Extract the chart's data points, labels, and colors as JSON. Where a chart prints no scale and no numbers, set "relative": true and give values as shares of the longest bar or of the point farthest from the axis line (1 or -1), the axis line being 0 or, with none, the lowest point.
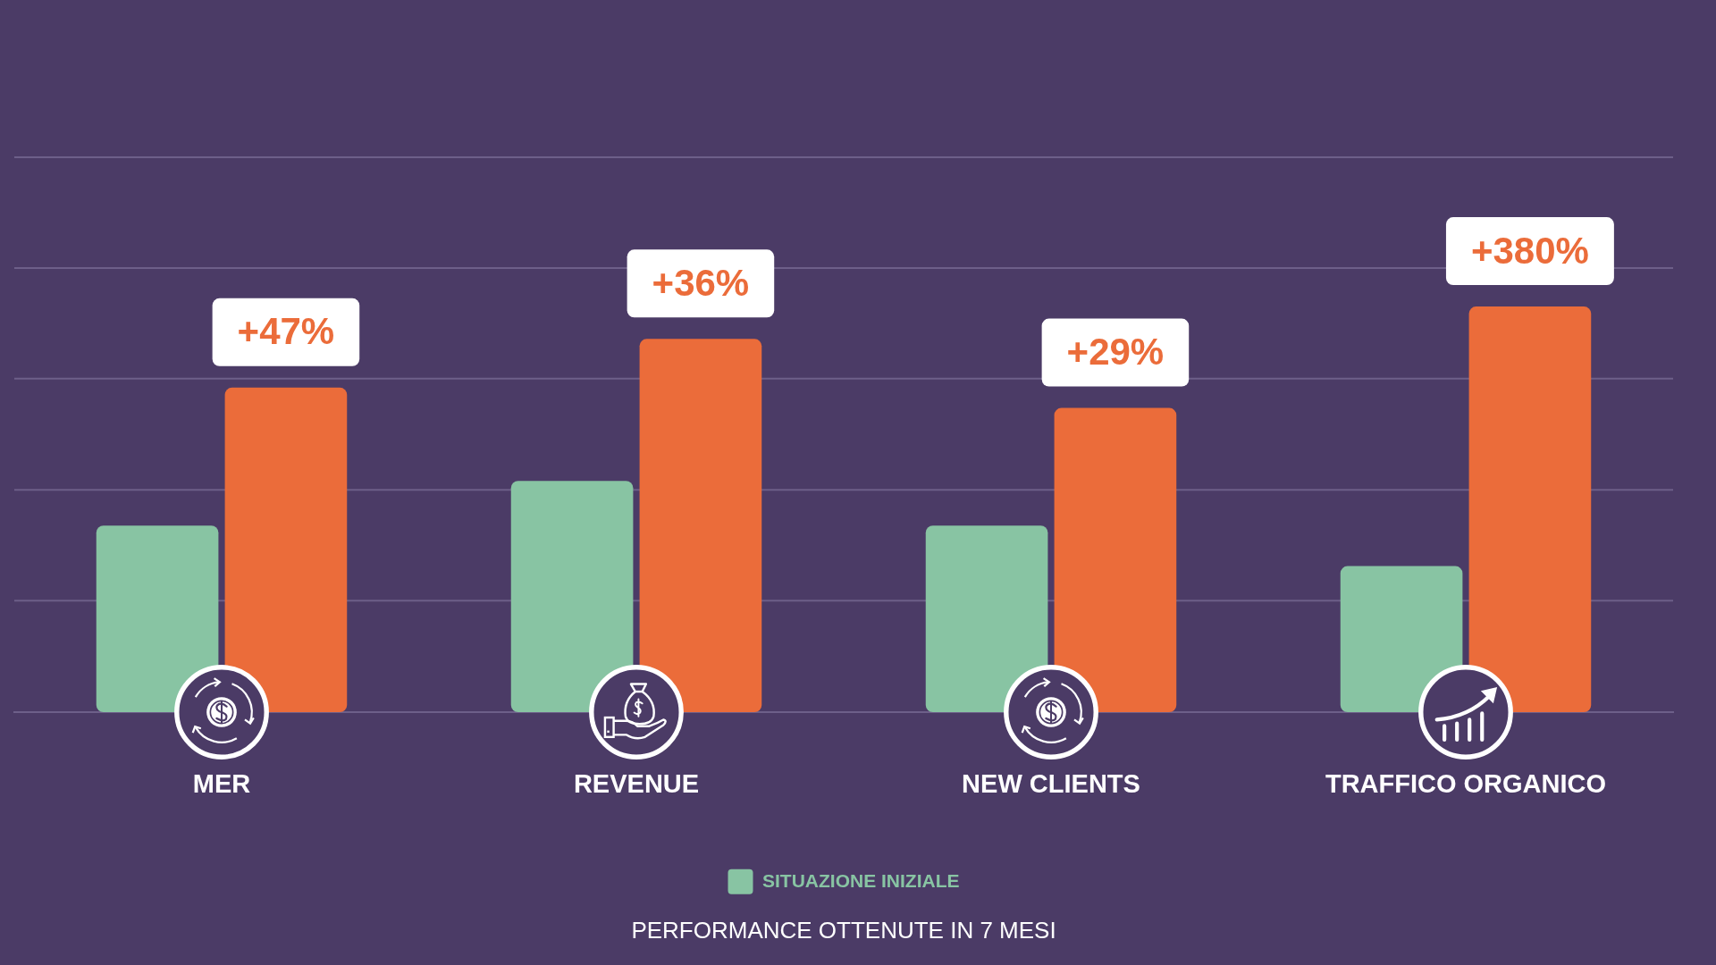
{
  "chart_data": {
    "type": "bar",
    "title": "PERFORMANCE OTTENUTE IN 7 MESI",
    "categories": [
      "MER",
      "REVENUE",
      "NEW CLIENTS",
      "TRAFFICO ORGANICO"
    ],
    "relative": true,
    "series": [
      {
        "name": "SITUAZIONE INIZIALE",
        "color": "#88c4a3",
        "values": [
          0.46,
          0.57,
          0.46,
          0.36
        ]
      },
      {
        "color": "#eb6c3a",
        "values": [
          0.8,
          0.92,
          0.75,
          1
        ]
      }
    ],
    "ref_lines": [
      {
        "axis": "y",
        "value": 0.275,
        "color": "#6d5f89"
      },
      {
        "axis": "y",
        "value": 0.548,
        "color": "#6d5f89"
      },
      {
        "axis": "y",
        "value": 0.822,
        "color": "#6d5f89"
      },
      {
        "axis": "y",
        "value": 1.095,
        "color": "#6d5f89"
      },
      {
        "axis": "y",
        "value": 1.368,
        "color": "#6d5f89"
      }
    ],
    "annotations": [
      "+47%",
      "+36%",
      "+29%",
      "+380%"
    ],
    "legend": "bottom"
  }
}
